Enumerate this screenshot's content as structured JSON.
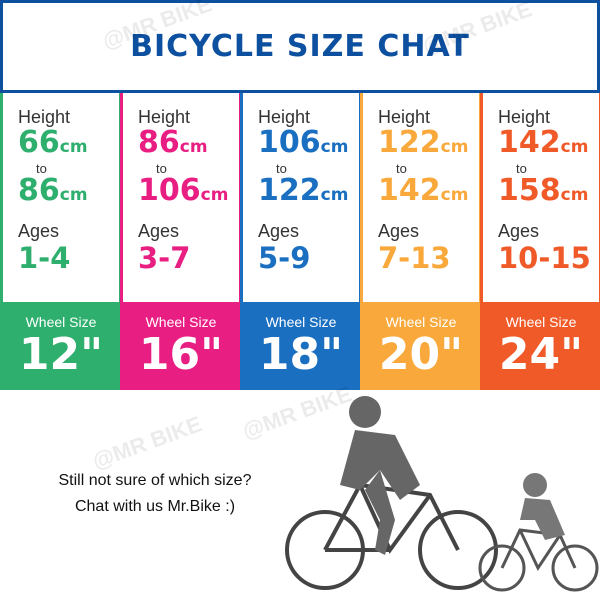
{
  "title": "BICYCLE SIZE CHAT",
  "watermark": "@MR BIKE",
  "columns": [
    {
      "height_label": "Height",
      "from": "66",
      "to_word": "to",
      "to": "86",
      "unit": "cm",
      "ages_label": "Ages",
      "ages": "1-4",
      "wheel_label": "Wheel Size",
      "wheel": "12\"",
      "color": "#2eaf6e"
    },
    {
      "height_label": "Height",
      "from": "86",
      "to_word": "to",
      "to": "106",
      "unit": "cm",
      "ages_label": "Ages",
      "ages": "3-7",
      "wheel_label": "Wheel Size",
      "wheel": "16\"",
      "color": "#e91e83"
    },
    {
      "height_label": "Height",
      "from": "106",
      "to_word": "to",
      "to": "122",
      "unit": "cm",
      "ages_label": "Ages",
      "ages": "5-9",
      "wheel_label": "Wheel Size",
      "wheel": "18\"",
      "color": "#1a6fc0"
    },
    {
      "height_label": "Height",
      "from": "122",
      "to_word": "to",
      "to": "142",
      "unit": "cm",
      "ages_label": "Ages",
      "ages": "7-13",
      "wheel_label": "Wheel Size",
      "wheel": "20\"",
      "color": "#f9a93b"
    },
    {
      "height_label": "Height",
      "from": "142",
      "to_word": "to",
      "to": "158",
      "unit": "cm",
      "ages_label": "Ages",
      "ages": "10-15",
      "wheel_label": "Wheel Size",
      "wheel": "24\"",
      "color": "#f05a28"
    }
  ],
  "message": {
    "line1": "Still not sure of which size?",
    "line2": "Chat with us Mr.Bike :)"
  }
}
